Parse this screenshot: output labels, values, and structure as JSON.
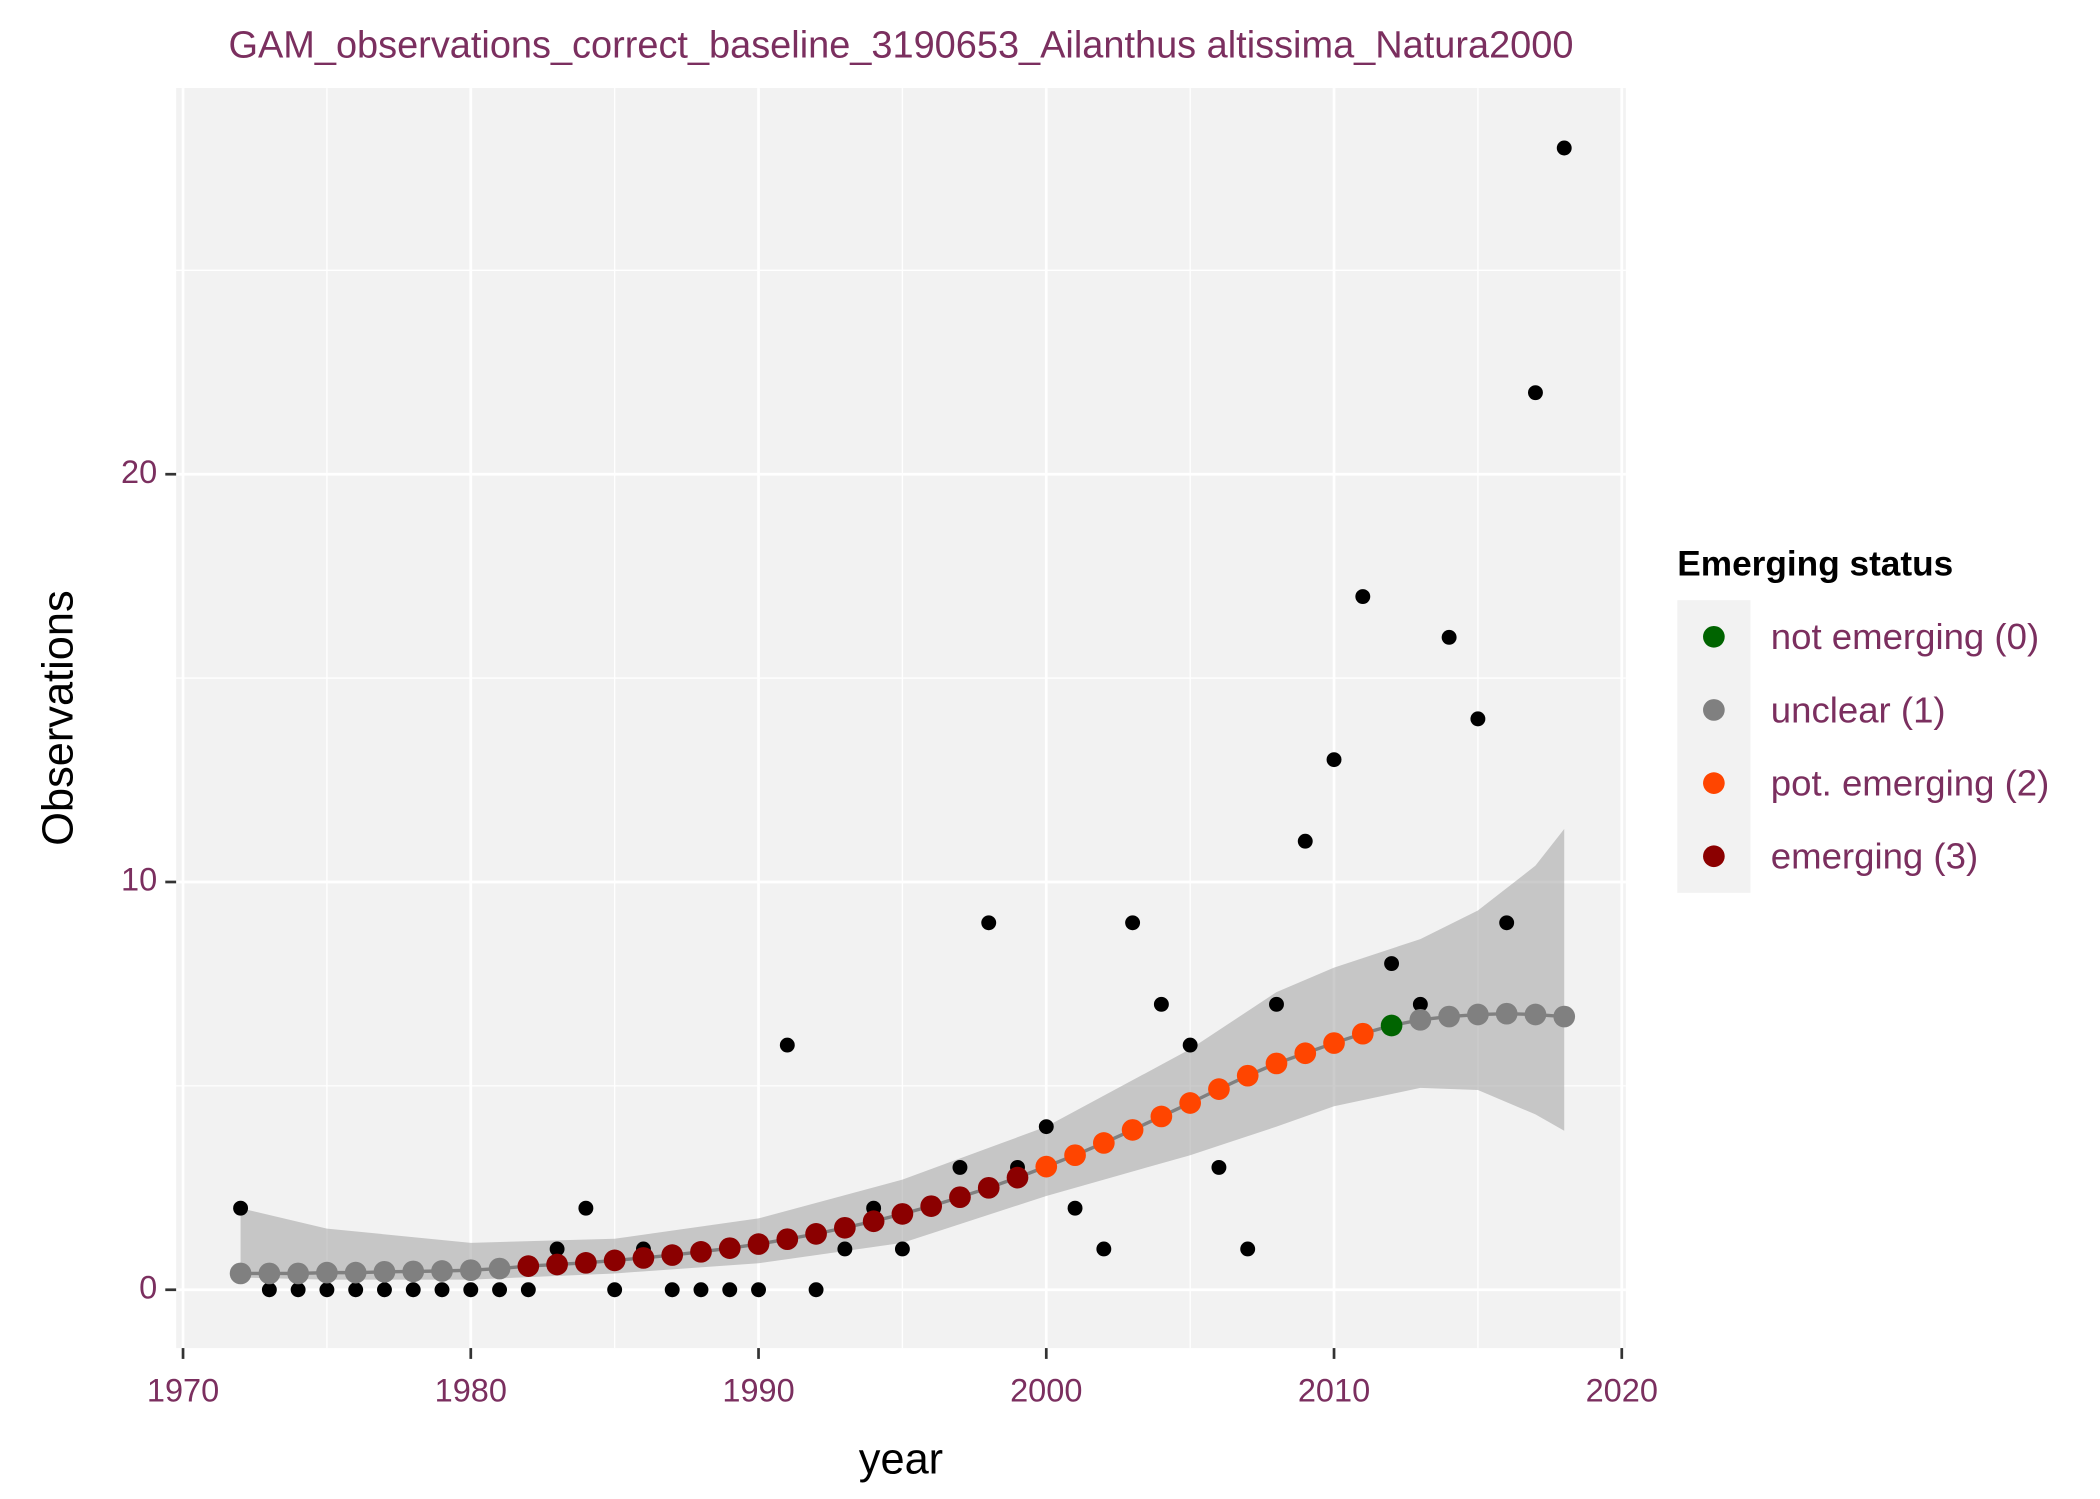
{
  "chart_data": {
    "type": "scatter",
    "title": "GAM_observations_correct_baseline_3190653_Ailanthus altissima_Natura2000",
    "x_label": "year",
    "y_label": "Observations",
    "x": [
      1972,
      1973,
      1974,
      1975,
      1976,
      1977,
      1978,
      1979,
      1980,
      1981,
      1982,
      1983,
      1984,
      1985,
      1986,
      1987,
      1988,
      1989,
      1990,
      1991,
      1992,
      1993,
      1994,
      1995,
      1996,
      1997,
      1998,
      1999,
      2000,
      2001,
      2002,
      2003,
      2004,
      2005,
      2006,
      2007,
      2008,
      2009,
      2010,
      2011,
      2012,
      2013,
      2014,
      2015,
      2016,
      2017,
      2018
    ],
    "observations": {
      "color": "#000000",
      "values": [
        2,
        0,
        0,
        0,
        0,
        0,
        0,
        0,
        0,
        0,
        0,
        1,
        2,
        0,
        1,
        0,
        0,
        0,
        0,
        6,
        0,
        1,
        2,
        1,
        2,
        3,
        9,
        3,
        4,
        2,
        1,
        9,
        7,
        6,
        3,
        1,
        7,
        11,
        13,
        17,
        8,
        7,
        16,
        14,
        9,
        22,
        28
      ]
    },
    "series": [
      {
        "name": "not emerging (0)",
        "color": "#006400",
        "values": [
          null,
          null,
          null,
          null,
          null,
          null,
          null,
          null,
          null,
          null,
          null,
          null,
          null,
          null,
          null,
          null,
          null,
          null,
          null,
          null,
          null,
          null,
          null,
          null,
          null,
          null,
          null,
          null,
          null,
          null,
          null,
          null,
          null,
          null,
          null,
          null,
          null,
          null,
          null,
          null,
          6.48,
          null,
          null,
          null,
          null,
          null,
          null
        ]
      },
      {
        "name": "unclear (1)",
        "color": "#808080",
        "values": [
          0.4,
          0.4,
          0.4,
          0.42,
          0.42,
          0.44,
          0.45,
          0.46,
          0.48,
          0.52,
          null,
          null,
          null,
          null,
          null,
          null,
          null,
          null,
          null,
          null,
          null,
          null,
          null,
          null,
          null,
          null,
          null,
          null,
          null,
          null,
          null,
          null,
          null,
          null,
          null,
          null,
          null,
          null,
          null,
          null,
          null,
          6.62,
          6.7,
          6.75,
          6.77,
          6.75,
          6.7
        ]
      },
      {
        "name": "pot. emerging (2)",
        "color": "#ff4500",
        "values": [
          null,
          null,
          null,
          null,
          null,
          null,
          null,
          null,
          null,
          null,
          null,
          null,
          null,
          null,
          null,
          null,
          null,
          null,
          null,
          null,
          null,
          null,
          null,
          null,
          null,
          null,
          null,
          null,
          3.02,
          3.3,
          3.6,
          3.92,
          4.25,
          4.58,
          4.92,
          5.25,
          5.55,
          5.8,
          6.05,
          6.28,
          null,
          null,
          null,
          null,
          null,
          null,
          null
        ]
      },
      {
        "name": "emerging (3)",
        "color": "#8b0000",
        "values": [
          null,
          null,
          null,
          null,
          null,
          null,
          null,
          null,
          null,
          null,
          0.58,
          0.62,
          0.66,
          0.72,
          0.78,
          0.85,
          0.93,
          1.02,
          1.12,
          1.24,
          1.37,
          1.52,
          1.68,
          1.86,
          2.05,
          2.27,
          2.5,
          2.75,
          null,
          null,
          null,
          null,
          null,
          null,
          null,
          null,
          null,
          null,
          null,
          null,
          null,
          null,
          null,
          null,
          null,
          null,
          null
        ]
      }
    ],
    "band": {
      "x": [
        1972,
        1975,
        1980,
        1985,
        1990,
        1995,
        2000,
        2005,
        2008,
        2010,
        2013,
        2015,
        2017,
        2018
      ],
      "lower": [
        0.3,
        0.25,
        0.25,
        0.4,
        0.65,
        1.15,
        2.3,
        3.3,
        4.0,
        4.5,
        4.95,
        4.9,
        4.3,
        3.9
      ],
      "upper": [
        2.0,
        1.5,
        1.15,
        1.25,
        1.75,
        2.7,
        4.0,
        5.9,
        7.3,
        7.9,
        8.6,
        9.3,
        10.4,
        11.3
      ]
    },
    "xlim": [
      1969.76,
      2020.14
    ],
    "ylim": [
      -1.43,
      29.47
    ],
    "xticks": [
      1970,
      1980,
      1990,
      2000,
      2010,
      2020
    ],
    "yticks": [
      0,
      10,
      20
    ],
    "grid": true,
    "legend_title": "Emerging status",
    "legend": "right"
  }
}
